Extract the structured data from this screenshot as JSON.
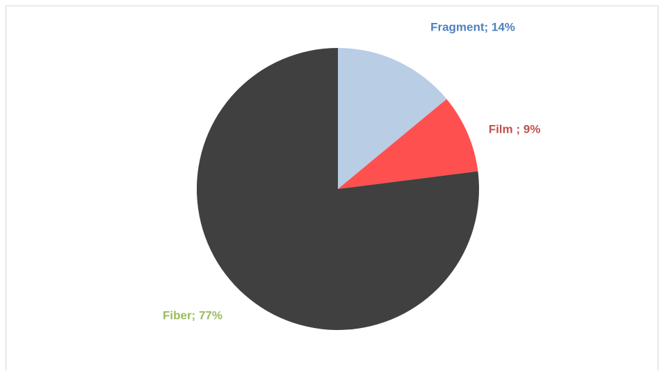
{
  "chart_data": {
    "type": "pie",
    "values": [
      14,
      9,
      77
    ],
    "value_labels": [
      "Fragment; 14%",
      "Film ; 9%",
      "Fiber; 77%"
    ],
    "colors": [
      "#b9cde5",
      "#ff5050",
      "#404040"
    ],
    "label_colors": [
      "#4f81bd",
      "#c0504d",
      "#9bbb59"
    ]
  }
}
